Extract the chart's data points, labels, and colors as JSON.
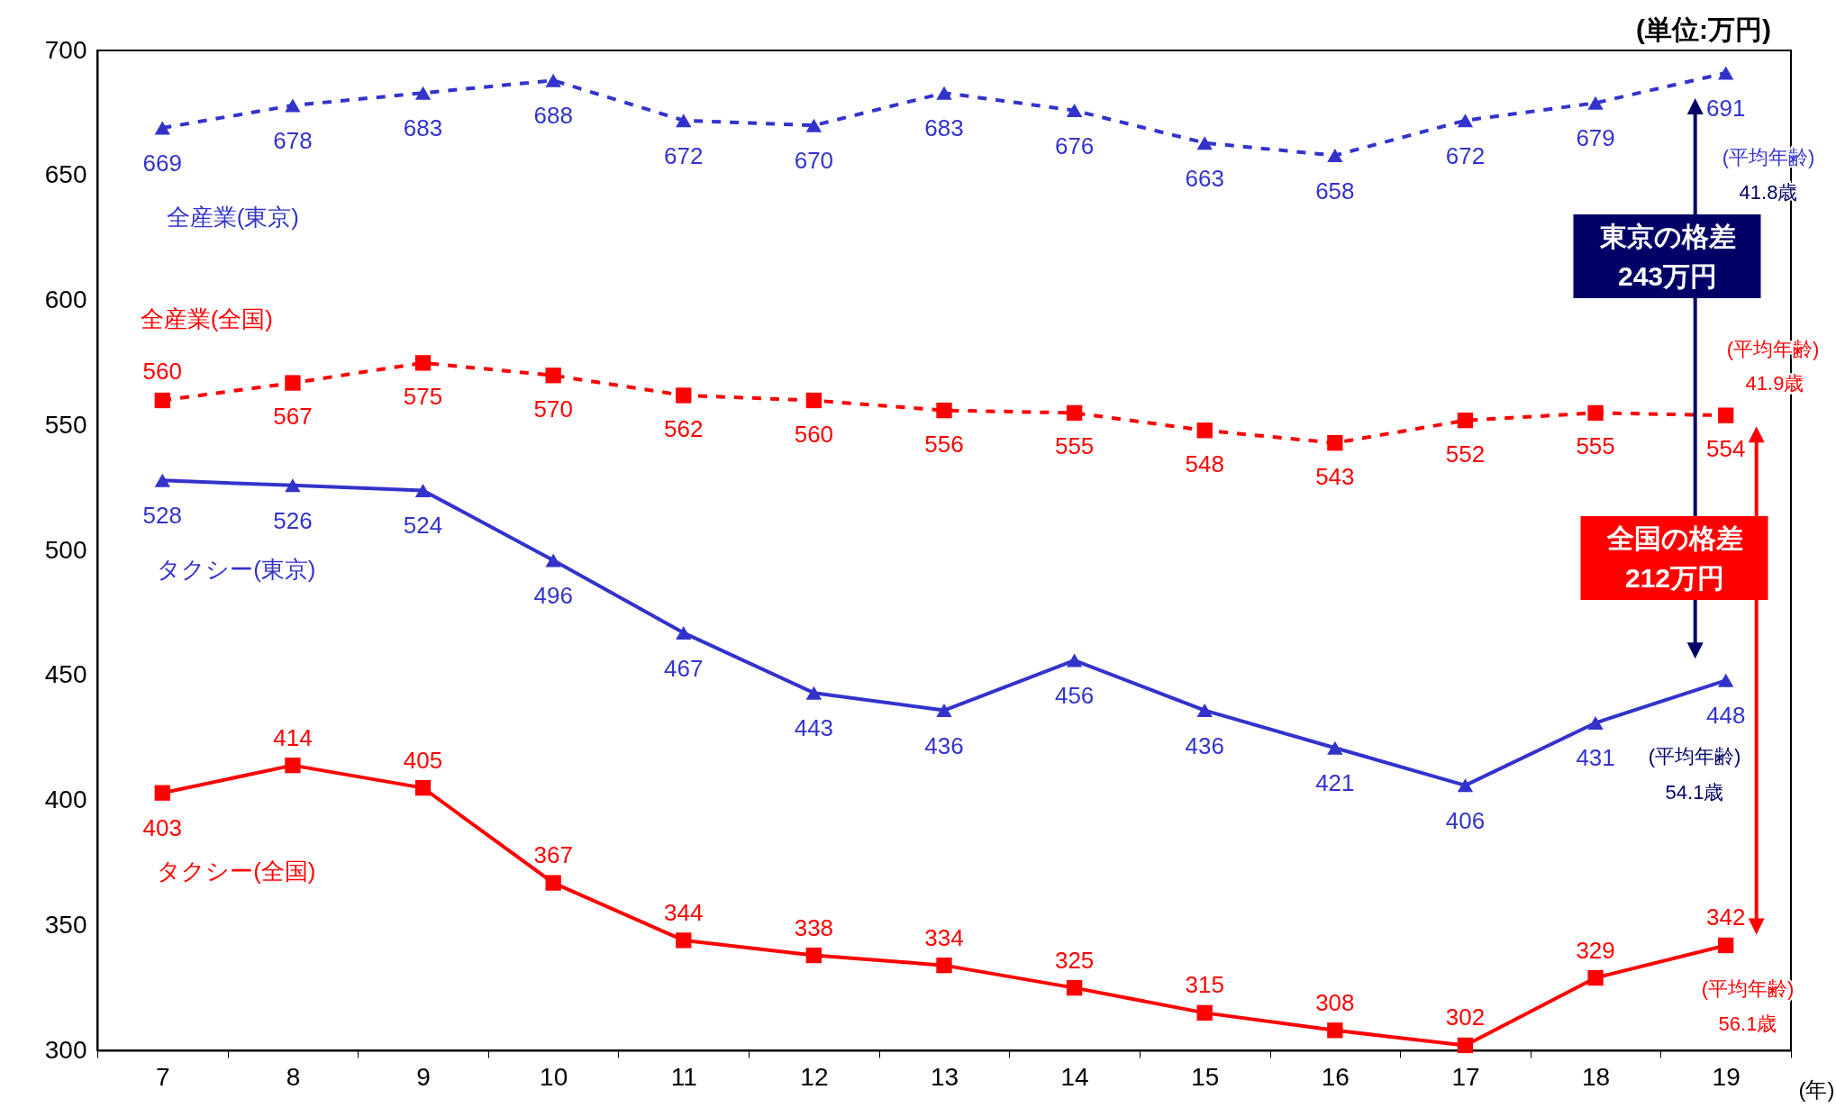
{
  "chart_data": {
    "type": "line",
    "xlabel": "(年)",
    "categories": [
      "7",
      "8",
      "9",
      "10",
      "11",
      "12",
      "13",
      "14",
      "15",
      "16",
      "17",
      "18",
      "19"
    ],
    "series": [
      {
        "name": "全産業(東京)",
        "color": "#3333cc",
        "marker": "triangle",
        "line_style": "dashed",
        "values": [
          669,
          678,
          683,
          688,
          672,
          670,
          683,
          676,
          663,
          658,
          672,
          679,
          691
        ]
      },
      {
        "name": "全産業(全国)",
        "color": "#ff0000",
        "marker": "square",
        "line_style": "dashed",
        "values": [
          560,
          567,
          575,
          570,
          562,
          560,
          556,
          555,
          548,
          543,
          552,
          555,
          554
        ]
      },
      {
        "name": "タクシー(東京)",
        "color": "#3333cc",
        "marker": "triangle",
        "line_style": "solid",
        "values": [
          528,
          526,
          524,
          496,
          467,
          443,
          436,
          456,
          436,
          421,
          406,
          431,
          448
        ]
      },
      {
        "name": "タクシー(全国)",
        "color": "#ff0000",
        "marker": "square",
        "line_style": "solid",
        "values": [
          403,
          414,
          405,
          367,
          344,
          338,
          334,
          325,
          315,
          308,
          302,
          329,
          342
        ]
      }
    ],
    "ylim": [
      300,
      700
    ],
    "yticks": [
      300,
      350,
      400,
      450,
      500,
      550,
      600,
      650,
      700
    ],
    "grid": false,
    "legend": false,
    "data_labels": true,
    "annotations": [
      "(単位:万円)",
      "(平均年齢)",
      "41.8歳",
      "東京の格差",
      "243万円",
      "(平均年齢)",
      "41.9歳",
      "全国の格差",
      "212万円",
      "(平均年齢)",
      "54.1歳",
      "(平均年齢)",
      "56.1歳"
    ]
  }
}
